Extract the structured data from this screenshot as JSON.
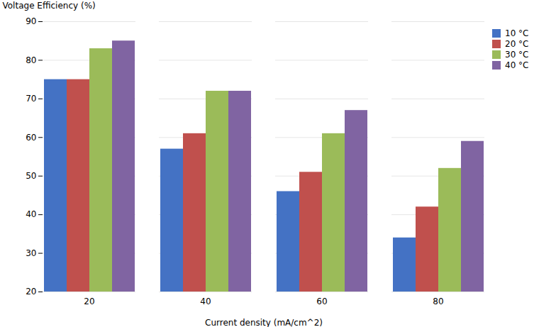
{
  "chart_data": {
    "type": "bar",
    "categories": [
      20,
      40,
      60,
      80
    ],
    "series": [
      {
        "name": "10 °C",
        "color": "#4472C4",
        "values": [
          75,
          57,
          46,
          34
        ]
      },
      {
        "name": "20 °C",
        "color": "#C0504D",
        "values": [
          75,
          61,
          51,
          42
        ]
      },
      {
        "name": "30 °C",
        "color": "#9BBB59",
        "values": [
          83,
          72,
          61,
          52
        ]
      },
      {
        "name": "40 °C",
        "color": "#8064A2",
        "values": [
          85,
          72,
          67,
          59
        ]
      }
    ],
    "xlabel": "Current density (mA/cm^2)",
    "ylabel": "Voltage Efficiency (%)",
    "ylim": [
      20,
      90
    ],
    "yticks": [
      20,
      30,
      40,
      50,
      60,
      70,
      80,
      90
    ],
    "grid": true,
    "legend": "right"
  }
}
